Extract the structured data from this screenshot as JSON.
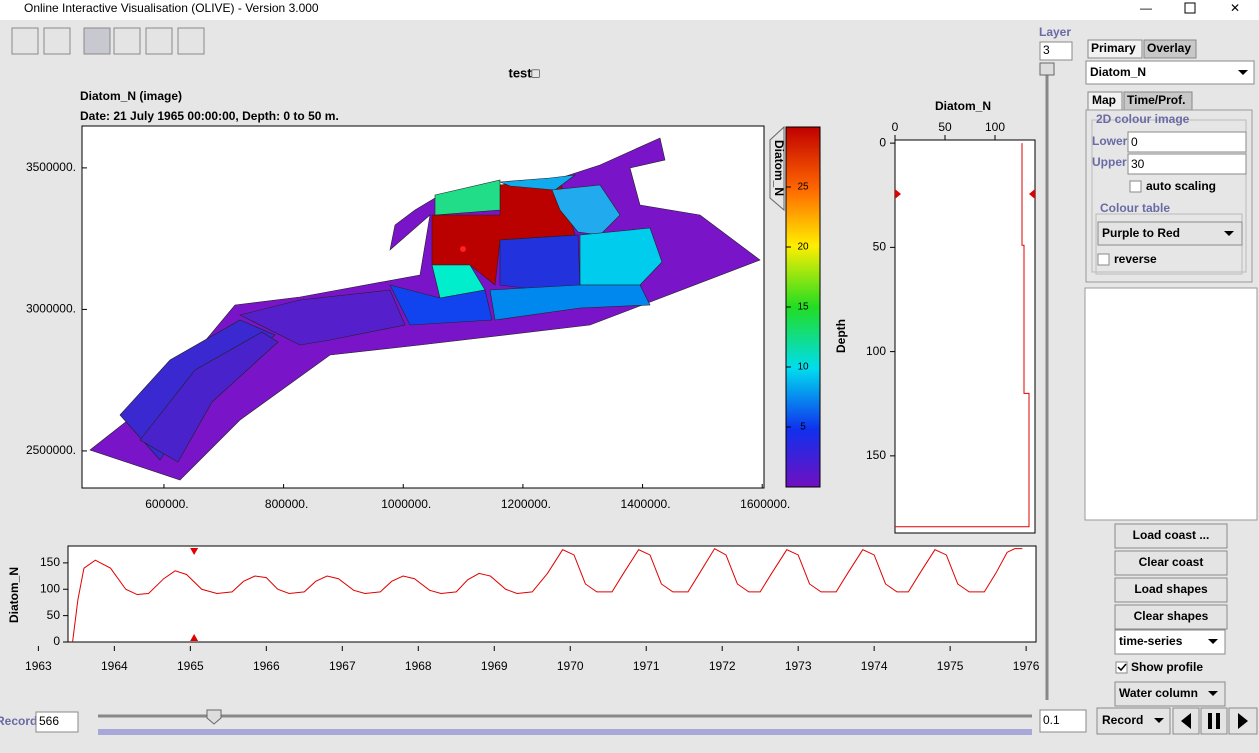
{
  "window": {
    "title": "Online Interactive Visualisation (OLIVE) - Version 3.000"
  },
  "plot": {
    "title": "test□",
    "subtitle": "Diatom_N (image)",
    "date": "Date: 21 July 1965 00:00:00, Depth: 0 to 50 m."
  },
  "map": {
    "xlim": [
      463000,
      1603000
    ],
    "ylim": [
      2369000,
      3648000
    ],
    "xticks": [
      {
        "value": 600000,
        "label": "600000."
      },
      {
        "value": 800000,
        "label": "800000."
      },
      {
        "value": 1000000,
        "label": "1000000."
      },
      {
        "value": 1200000,
        "label": "1200000."
      },
      {
        "value": 1400000,
        "label": "1400000."
      },
      {
        "value": 1600000,
        "label": "1600000."
      }
    ],
    "yticks": [
      {
        "value": 2500000,
        "label": "2500000."
      },
      {
        "value": 3000000,
        "label": "3000000."
      },
      {
        "value": 3500000,
        "label": "3500000."
      }
    ]
  },
  "colorbar": {
    "label": "Diatom_N",
    "clim": [
      0,
      30
    ],
    "ticks": [
      5,
      10,
      15,
      20,
      25
    ]
  },
  "profile": {
    "title": "Diatom_N",
    "ylabel": "Depth",
    "xlim": [
      0,
      140
    ],
    "ylim": [
      -1.5,
      187
    ],
    "xticks": [
      0,
      50,
      100
    ],
    "yticks": [
      0,
      50,
      100,
      150
    ],
    "x": [
      127,
      127,
      129,
      129,
      134,
      134,
      0
    ],
    "depth": [
      0,
      49,
      49,
      120,
      120,
      184,
      184
    ],
    "color": "#e00000"
  },
  "timeseries": {
    "ylabel": "Diatom_N",
    "xlim": [
      1963.39,
      1976.13
    ],
    "ylim": [
      0,
      182
    ],
    "xticks": [
      1963,
      1964,
      1965,
      1966,
      1967,
      1968,
      1969,
      1970,
      1971,
      1972,
      1973,
      1974,
      1975,
      1976
    ],
    "yticks": [
      0,
      50,
      100,
      150
    ],
    "x": [
      1963.45,
      1963.52,
      1963.6,
      1963.75,
      1963.95,
      1964.15,
      1964.3,
      1964.45,
      1964.65,
      1964.8,
      1964.95,
      1965.15,
      1965.35,
      1965.55,
      1965.7,
      1965.85,
      1966.0,
      1966.15,
      1966.3,
      1966.5,
      1966.65,
      1966.8,
      1966.95,
      1967.15,
      1967.3,
      1967.5,
      1967.65,
      1967.8,
      1967.95,
      1968.15,
      1968.3,
      1968.5,
      1968.65,
      1968.8,
      1968.95,
      1969.15,
      1969.3,
      1969.5,
      1969.7,
      1969.9,
      1970.05,
      1970.2,
      1970.35,
      1970.55,
      1970.7,
      1970.9,
      1971.05,
      1971.2,
      1971.35,
      1971.55,
      1971.7,
      1971.9,
      1972.05,
      1972.2,
      1972.35,
      1972.5,
      1972.65,
      1972.85,
      1973.0,
      1973.15,
      1973.3,
      1973.5,
      1973.65,
      1973.85,
      1974.0,
      1974.15,
      1974.3,
      1974.45,
      1974.6,
      1974.8,
      1974.95,
      1975.1,
      1975.25,
      1975.45,
      1975.6,
      1975.75,
      1975.85,
      1975.95
    ],
    "values": [
      0,
      80,
      140,
      155,
      140,
      100,
      90,
      92,
      120,
      135,
      128,
      100,
      92,
      95,
      115,
      125,
      122,
      100,
      92,
      95,
      115,
      125,
      120,
      98,
      92,
      95,
      115,
      125,
      120,
      98,
      92,
      95,
      118,
      130,
      125,
      100,
      92,
      95,
      130,
      175,
      165,
      110,
      95,
      95,
      130,
      175,
      165,
      110,
      95,
      95,
      130,
      177,
      165,
      110,
      95,
      95,
      130,
      175,
      165,
      110,
      95,
      95,
      130,
      175,
      165,
      110,
      95,
      95,
      130,
      175,
      165,
      110,
      95,
      95,
      130,
      170,
      177,
      177
    ],
    "marker": 1965.05,
    "color": "#e00000"
  },
  "controls": {
    "layer_label": "Layer",
    "layer": 3,
    "tabs": [
      "Primary",
      "Overlay"
    ],
    "variable": "Diatom_N",
    "subtabs": [
      "Map",
      "Time/Prof."
    ],
    "group": "2D colour image",
    "lower_label": "Lower",
    "lower": 0,
    "upper_label": "Upper",
    "upper": 30,
    "auto_scaling": "auto scaling",
    "colour_table_label": "Colour table",
    "colour_table": "Purple to Red",
    "reverse": "reverse",
    "buttons": [
      "Load coast ...",
      "Clear coast",
      "Load shapes",
      "Clear shapes"
    ],
    "plot_mode": "time-series",
    "show_profile": "Show profile",
    "profile_mode": "Water column"
  },
  "playback": {
    "record_label": "Record",
    "record": 566,
    "step": 0.1,
    "mode": "Record"
  }
}
